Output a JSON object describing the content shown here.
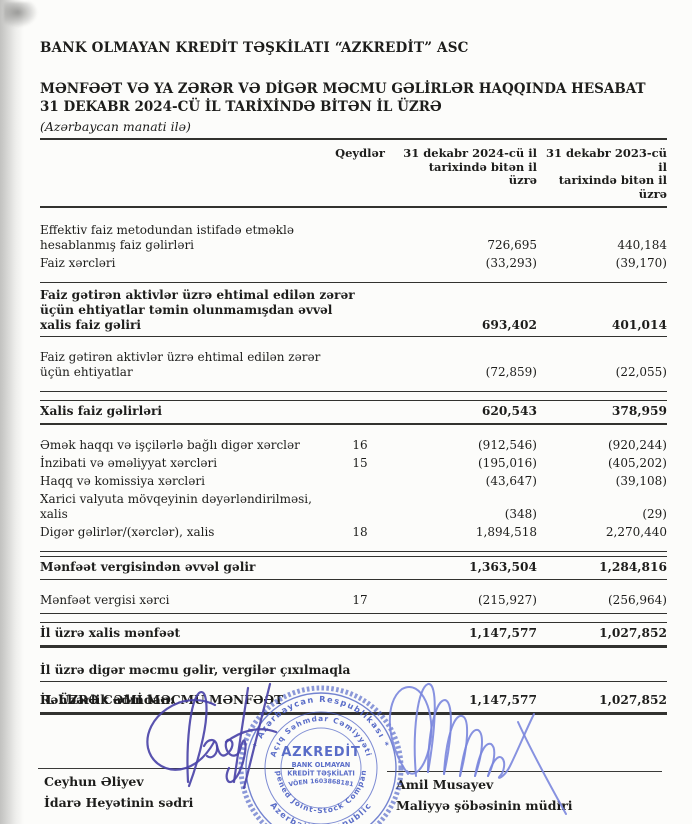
{
  "header": {
    "company": "BANK OLMAYAN KREDİT TƏŞKİLATI  “AZKREDİT” ASC",
    "title_line1": "MƏNFƏƏT VƏ YA ZƏRƏR VƏ DİGƏR MƏCMU GƏLİRLƏR HAQQINDA HESABAT",
    "title_line2": "31 DEKABR 2024-CÜ İL TARİXİNDƏ BİTƏN İL ÜZRƏ",
    "currency_note": "(Azərbaycan manati ilə)"
  },
  "table": {
    "columns": [
      {
        "label": "Qeydlər"
      },
      {
        "lines": [
          "31 dekabr 2024-cü il",
          "tarixində bitən il",
          "üzrə"
        ]
      },
      {
        "lines": [
          "31 dekabr 2023-cü il",
          "tarixində bitən il",
          "üzrə"
        ]
      }
    ],
    "rows": [
      {
        "lines": [
          "Effektiv faiz metodundan istifadə etməklə",
          "hesablanmış faiz gəlirləri"
        ],
        "note": "",
        "v2024": "726,695",
        "v2023": "440,184",
        "cls": "gap-lg"
      },
      {
        "lines": [
          "Faiz xərcləri"
        ],
        "note": "",
        "v2024": "(33,293)",
        "v2023": "(39,170)",
        "cls": "pb-md rb"
      },
      {
        "lines": [
          "Faiz gətirən aktivlər üzrə ehtimal edilən zərər",
          "üçün ehtiyatlar təmin olunmamışdan əvvəl",
          "xalis faiz gəliri"
        ],
        "note": "",
        "v2024": "693,402",
        "v2023": "401,014",
        "cls": "b gap-xs pb-xs rb"
      },
      {
        "lines": [
          "Faiz gətirən aktivlər üzrə ehtimal edilən zərər",
          "üçün ehtiyatlar"
        ],
        "note": "",
        "v2024": "(72,859)",
        "v2023": "(22,055)",
        "cls": "gap-md pb-md rb"
      },
      {
        "lines": [
          "Xalis faiz gəlirləri"
        ],
        "note": "",
        "v2024": "620,543",
        "v2023": "378,959",
        "cls": "b gap-sm rt rb2 pv"
      },
      {
        "lines": [
          "Əmək haqqı və işçilərlə bağlı digər xərclər"
        ],
        "note": "16",
        "v2024": "(912,546)",
        "v2023": "(920,244)",
        "cls": "gap-md"
      },
      {
        "lines": [
          "İnzibati və əməliyyat xərcləri"
        ],
        "note": "15",
        "v2024": "(195,016)",
        "v2023": "(405,202)",
        "cls": ""
      },
      {
        "lines": [
          "Haqq və komissiya xərcləri"
        ],
        "note": "",
        "v2024": "(43,647)",
        "v2023": "(39,108)",
        "cls": ""
      },
      {
        "lines": [
          "Xarici valyuta mövqeyinin dəyərləndirilməsi,",
          "xalis"
        ],
        "note": "",
        "v2024": "(348)",
        "v2023": "(29)",
        "cls": ""
      },
      {
        "lines": [
          "Digər gəlirlər/(xərclər), xalis"
        ],
        "note": "18",
        "v2024": "1,894,518",
        "v2023": "2,270,440",
        "cls": "pb-md rb"
      },
      {
        "lines": [
          "Mənfəət vergisindən əvvəl gəlir"
        ],
        "note": "",
        "v2024": "1,363,504",
        "v2023": "1,284,816",
        "cls": "b gap-xs rt rb pv"
      },
      {
        "lines": [
          "Mənfəət vergisi xərci"
        ],
        "note": "17",
        "v2024": "(215,927)",
        "v2023": "(256,964)",
        "cls": "gap-md pb-sm rb"
      },
      {
        "lines": [
          "İl üzrə xalis mənfəət"
        ],
        "note": "",
        "v2024": "1,147,577",
        "v2023": "1,027,852",
        "cls": "b gap-sm rt rb3 pv"
      },
      {
        "lines": [
          "İl üzrə digər məcmu gəlir, vergilər çıxılmaqla"
        ],
        "note": "",
        "v2024": "",
        "v2023": "",
        "cls": "b gap-lg pb-xs rb"
      },
      {
        "lines": [
          "İL ÜZRƏ CƏMİ MƏCMU MƏNFƏƏT"
        ],
        "note": "",
        "v2024": "1,147,577",
        "v2023": "1,027,852",
        "cls": "b gap-sm rb3 pv"
      }
    ]
  },
  "signatures": {
    "heading": "Rəhbərlik adından:",
    "left": {
      "name": "Ceyhun Əliyev",
      "title": "İdarə Heyətinin sədri"
    },
    "right": {
      "name": "Amil Musayev",
      "title": "Maliyyə şöbəsinin müdiri"
    }
  },
  "stamp": {
    "center_line1": "AZKREDİT",
    "center_line2": "BANK OLMAYAN",
    "center_line3": "KREDİT TƏŞKİLATI",
    "center_line4": "VÖEN 1603868181",
    "ring_top_outer": "* Azərbaycan Respublikası *",
    "ring_bottom_outer": "Azerbaijan Republic",
    "ring_top_inner": "Açıq Səhmdar Cəmiyyəti",
    "ring_bottom_inner": "Opened Joint-Stock Company"
  },
  "colors": {
    "text": "#1d1d1b",
    "rule": "#32322f",
    "stamp_ink": "#4d61c4",
    "sig_left_ink": "#4b44a8",
    "sig_right_ink": "#7a86dd"
  }
}
